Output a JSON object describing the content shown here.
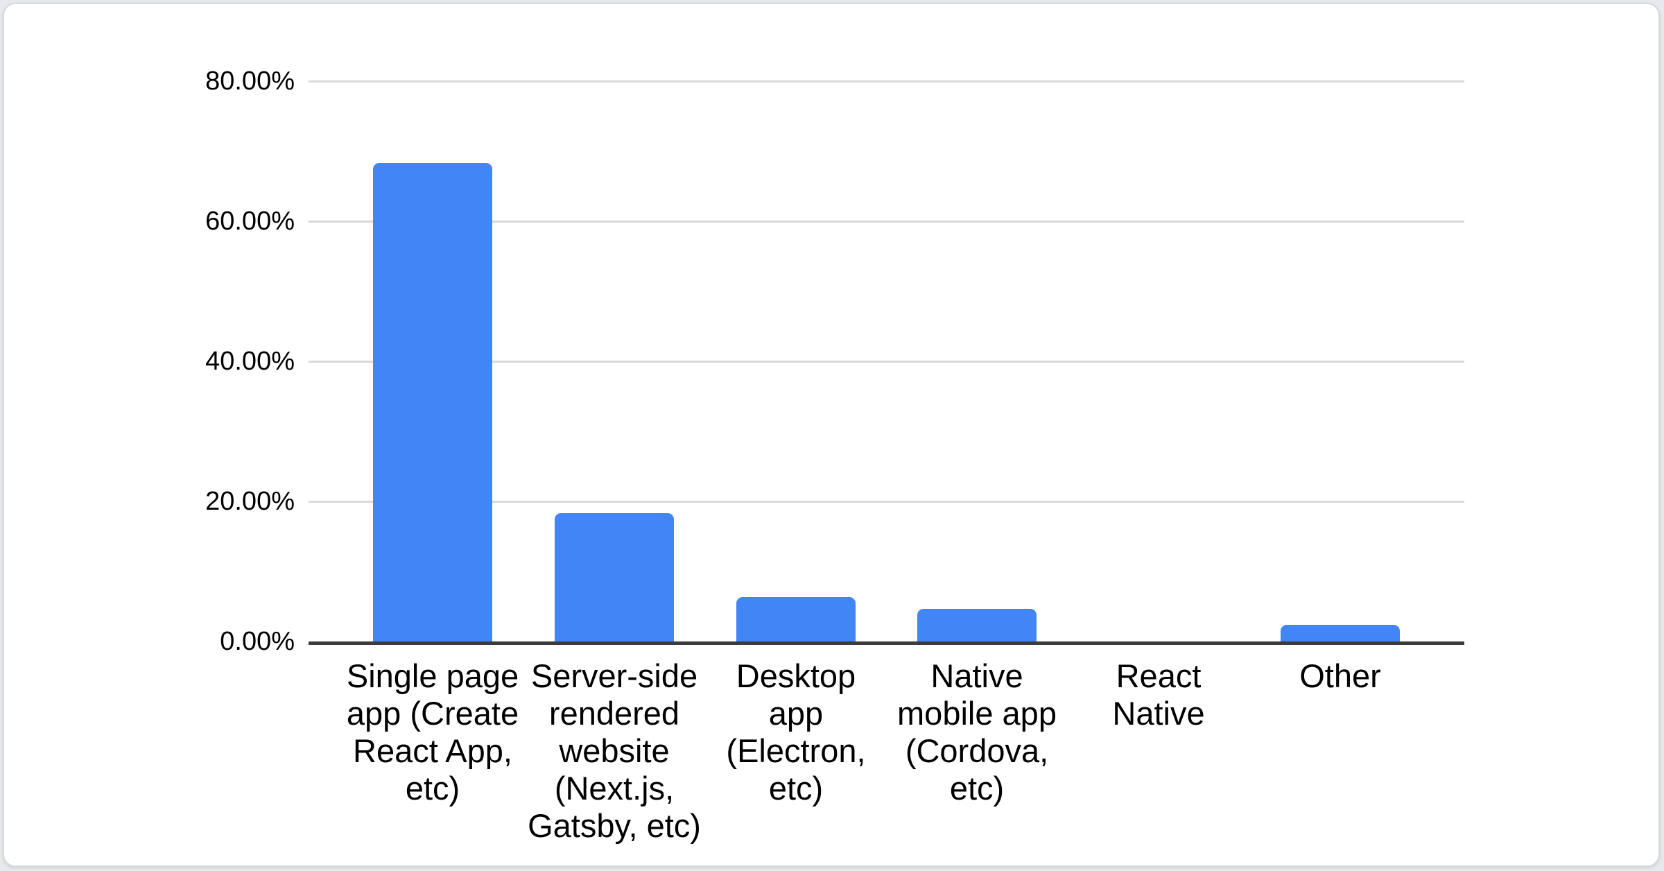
{
  "card": {
    "background": "#ffffff",
    "border_color": "#d6d9de"
  },
  "chart_data": {
    "type": "bar",
    "title": "",
    "xlabel": "",
    "ylabel": "",
    "legend": "none",
    "grid": true,
    "categories": [
      "Single page app (Create React App, etc)",
      "Server-side rendered website (Next.js, Gatsby, etc)",
      "Desktop app (Electron, etc)",
      "Native mobile app (Cordova, etc)",
      "React Native",
      "Other"
    ],
    "category_display": [
      "Single page\napp (Create\nReact App,\netc)",
      "Server-side\nrendered\nwebsite\n(Next.js,\nGatsby, etc)",
      "Desktop\napp\n(Electron,\netc)",
      "Native\nmobile app\n(Cordova,\netc)",
      "React\nNative",
      "Other"
    ],
    "values": [
      68.3,
      18.3,
      6.3,
      4.7,
      0,
      2.4
    ],
    "value_unit": "%",
    "ylim": [
      0,
      80
    ],
    "yticks": [
      {
        "value": 80,
        "label": "80.00%"
      },
      {
        "value": 60,
        "label": "60.00%"
      },
      {
        "value": 40,
        "label": "40.00%"
      },
      {
        "value": 20,
        "label": "20.00%"
      },
      {
        "value": 0,
        "label": "0.00%"
      }
    ],
    "colors": {
      "bar": "#4285F4",
      "gridline": "#d9d9d9",
      "axis": "#3c3c3c",
      "text": "#000000"
    }
  }
}
